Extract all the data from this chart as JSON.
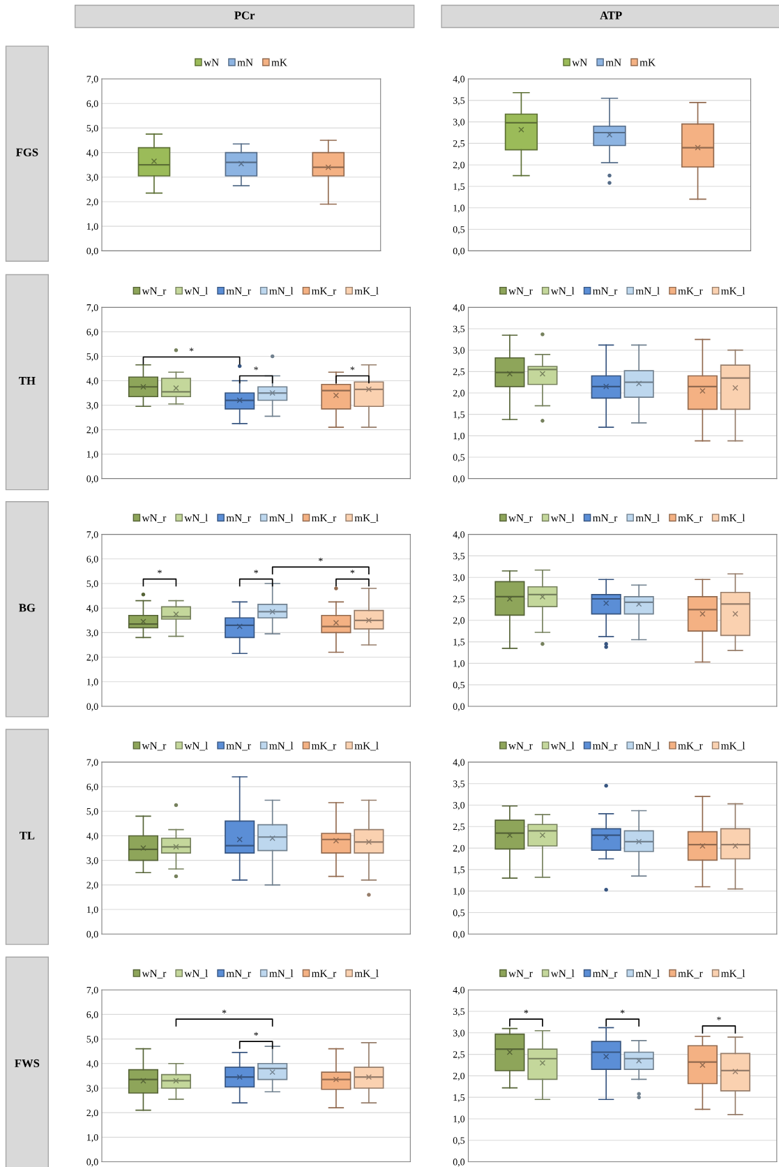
{
  "chart_data": [
    {
      "type": "box",
      "title": "PCr",
      "ylabel": "FGS",
      "categories": [
        null,
        null,
        null
      ],
      "ylim": [
        0,
        7
      ],
      "yticks": [
        {
          "value": 0,
          "label": "0,0"
        },
        {
          "value": 1,
          "label": "1,0"
        },
        {
          "value": 2,
          "label": "2,0"
        },
        {
          "value": 3,
          "label": "3,0"
        },
        {
          "value": 4,
          "label": "4,0"
        },
        {
          "value": 5,
          "label": "5,0"
        },
        {
          "value": 6,
          "label": "6,0"
        },
        {
          "value": 7,
          "label": "7,0"
        }
      ],
      "grid": "y",
      "legend": "top",
      "tick_labels": "y",
      "marker": "cross",
      "series": [
        {
          "name": "wN",
          "color": "#9bbb59",
          "boxes": [
            {
              "low": 2.35,
              "q1": 3.05,
              "median": 3.5,
              "q3": 4.2,
              "high": 4.75,
              "mean": 3.65
            },
            null,
            null
          ]
        },
        {
          "name": "mN",
          "color": "#8db4e2",
          "boxes": [
            null,
            {
              "low": 2.65,
              "q1": 3.05,
              "median": 3.6,
              "q3": 4.0,
              "high": 4.35,
              "mean": 3.55
            },
            null
          ]
        },
        {
          "name": "mK",
          "color": "#f4b183",
          "boxes": [
            null,
            null,
            {
              "low": 1.9,
              "q1": 3.05,
              "median": 3.4,
              "q3": 4.0,
              "high": 4.5,
              "mean": 3.4
            }
          ]
        }
      ]
    },
    {
      "type": "box",
      "title": "ATP",
      "categories": [
        null,
        null,
        null
      ],
      "ylim": [
        0,
        4
      ],
      "yticks": [
        {
          "value": 0,
          "label": "0,0"
        },
        {
          "value": 0.5,
          "label": "0,5"
        },
        {
          "value": 1,
          "label": "1,0"
        },
        {
          "value": 1.5,
          "label": "1,5"
        },
        {
          "value": 2,
          "label": "2,0"
        },
        {
          "value": 2.5,
          "label": "2,5"
        },
        {
          "value": 3,
          "label": "3,0"
        },
        {
          "value": 3.5,
          "label": "3,5"
        },
        {
          "value": 4,
          "label": "4,0"
        }
      ],
      "grid": "y",
      "legend": "top",
      "tick_labels": "y",
      "marker": "cross",
      "series": [
        {
          "name": "wN",
          "color": "#9bbb59",
          "boxes": [
            {
              "low": 1.75,
              "q1": 2.35,
              "median": 2.98,
              "q3": 3.18,
              "high": 3.68,
              "mean": 2.82
            },
            null,
            null
          ]
        },
        {
          "name": "mN",
          "color": "#8db4e2",
          "boxes": [
            null,
            {
              "low": 2.05,
              "q1": 2.45,
              "median": 2.75,
              "q3": 2.9,
              "high": 3.55,
              "mean": 2.7,
              "outliers": [
                1.75,
                1.58
              ]
            },
            null
          ]
        },
        {
          "name": "mK",
          "color": "#f4b183",
          "boxes": [
            null,
            null,
            {
              "low": 1.2,
              "q1": 1.95,
              "median": 2.4,
              "q3": 2.95,
              "high": 3.45,
              "mean": 2.4
            }
          ]
        }
      ]
    },
    {
      "type": "box",
      "ylabel": "TH",
      "categories": [
        null,
        null,
        null
      ],
      "ylim": [
        0,
        7
      ],
      "yticks": [
        {
          "value": 0,
          "label": "0,0"
        },
        {
          "value": 1,
          "label": "1,0"
        },
        {
          "value": 2,
          "label": "2,0"
        },
        {
          "value": 3,
          "label": "3,0"
        },
        {
          "value": 4,
          "label": "4,0"
        },
        {
          "value": 5,
          "label": "5,0"
        },
        {
          "value": 6,
          "label": "6,0"
        },
        {
          "value": 7,
          "label": "7,0"
        }
      ],
      "grid": "y",
      "legend": "top",
      "tick_labels": "y",
      "marker": "cross",
      "series": [
        {
          "name": "wN_r",
          "color": "#8ea55a",
          "boxes": [
            {
              "low": 2.95,
              "q1": 3.35,
              "median": 3.75,
              "q3": 4.15,
              "high": 4.65,
              "mean": 3.75
            },
            null,
            null
          ]
        },
        {
          "name": "wN_l",
          "color": "#c4d79b",
          "boxes": [
            {
              "low": 3.05,
              "q1": 3.35,
              "median": 3.55,
              "q3": 4.1,
              "high": 4.35,
              "mean": 3.7,
              "outliers": [
                5.25
              ]
            },
            null,
            null
          ]
        },
        {
          "name": "mN_r",
          "color": "#5b8ed6",
          "boxes": [
            null,
            {
              "low": 2.25,
              "q1": 2.85,
              "median": 3.2,
              "q3": 3.5,
              "high": 4.0,
              "mean": 3.2,
              "outliers": [
                4.6
              ]
            },
            null
          ]
        },
        {
          "name": "mN_l",
          "color": "#bdd7ee",
          "boxes": [
            null,
            {
              "low": 2.55,
              "q1": 3.2,
              "median": 3.5,
              "q3": 3.75,
              "high": 4.2,
              "mean": 3.5,
              "outliers": [
                5.0
              ]
            },
            null
          ]
        },
        {
          "name": "mK_r",
          "color": "#f4b183",
          "boxes": [
            null,
            null,
            {
              "low": 2.1,
              "q1": 2.85,
              "median": 3.6,
              "q3": 3.85,
              "high": 4.35,
              "mean": 3.4
            }
          ]
        },
        {
          "name": "mK_l",
          "color": "#fad1b0",
          "boxes": [
            null,
            null,
            {
              "low": 2.1,
              "q1": 2.95,
              "median": 3.65,
              "q3": 3.95,
              "high": 4.65,
              "mean": 3.65
            }
          ]
        }
      ],
      "annotations": [
        "*",
        "*",
        "*"
      ]
    },
    {
      "type": "box",
      "categories": [
        null,
        null,
        null
      ],
      "ylim": [
        0,
        4
      ],
      "yticks": [
        {
          "value": 0,
          "label": "0,0"
        },
        {
          "value": 0.5,
          "label": "0,5"
        },
        {
          "value": 1,
          "label": "1,0"
        },
        {
          "value": 1.5,
          "label": "1,5"
        },
        {
          "value": 2,
          "label": "2,0"
        },
        {
          "value": 2.5,
          "label": "2,5"
        },
        {
          "value": 3,
          "label": "3,0"
        },
        {
          "value": 3.5,
          "label": "3,5"
        },
        {
          "value": 4,
          "label": "4,0"
        }
      ],
      "grid": "y",
      "legend": "top",
      "tick_labels": "y",
      "marker": "cross",
      "series": [
        {
          "name": "wN_r",
          "color": "#8ea55a",
          "boxes": [
            {
              "low": 1.38,
              "q1": 2.15,
              "median": 2.48,
              "q3": 2.82,
              "high": 3.35,
              "mean": 2.45
            },
            null,
            null
          ]
        },
        {
          "name": "wN_l",
          "color": "#c4d79b",
          "boxes": [
            {
              "low": 1.7,
              "q1": 2.2,
              "median": 2.55,
              "q3": 2.62,
              "high": 2.9,
              "mean": 2.45,
              "outliers": [
                3.37,
                1.35
              ]
            },
            null,
            null
          ]
        },
        {
          "name": "mN_r",
          "color": "#5b8ed6",
          "boxes": [
            null,
            {
              "low": 1.2,
              "q1": 1.88,
              "median": 2.15,
              "q3": 2.4,
              "high": 3.12,
              "mean": 2.15
            },
            null
          ]
        },
        {
          "name": "mN_l",
          "color": "#bdd7ee",
          "boxes": [
            null,
            {
              "low": 1.3,
              "q1": 1.9,
              "median": 2.25,
              "q3": 2.52,
              "high": 3.12,
              "mean": 2.22
            },
            null
          ]
        },
        {
          "name": "mK_r",
          "color": "#f4b183",
          "boxes": [
            null,
            null,
            {
              "low": 0.88,
              "q1": 1.62,
              "median": 2.15,
              "q3": 2.4,
              "high": 3.25,
              "mean": 2.05
            }
          ]
        },
        {
          "name": "mK_l",
          "color": "#fad1b0",
          "boxes": [
            null,
            null,
            {
              "low": 0.88,
              "q1": 1.62,
              "median": 2.35,
              "q3": 2.65,
              "high": 3.0,
              "mean": 2.12
            }
          ]
        }
      ]
    },
    {
      "type": "box",
      "ylabel": "BG",
      "categories": [
        null,
        null,
        null
      ],
      "ylim": [
        0,
        7
      ],
      "yticks": [
        {
          "value": 0,
          "label": "0,0"
        },
        {
          "value": 1,
          "label": "1,0"
        },
        {
          "value": 2,
          "label": "2,0"
        },
        {
          "value": 3,
          "label": "3,0"
        },
        {
          "value": 4,
          "label": "4,0"
        },
        {
          "value": 5,
          "label": "5,0"
        },
        {
          "value": 6,
          "label": "6,0"
        },
        {
          "value": 7,
          "label": "7,0"
        }
      ],
      "grid": "y",
      "legend": "top",
      "tick_labels": "y",
      "marker": "cross",
      "series": [
        {
          "name": "wN_r",
          "color": "#8ea55a",
          "boxes": [
            {
              "low": 2.8,
              "q1": 3.2,
              "median": 3.35,
              "q3": 3.7,
              "high": 4.3,
              "mean": 3.45,
              "outliers": [
                4.55
              ]
            },
            null,
            null
          ]
        },
        {
          "name": "wN_l",
          "color": "#c4d79b",
          "boxes": [
            {
              "low": 2.85,
              "q1": 3.55,
              "median": 3.65,
              "q3": 4.05,
              "high": 4.3,
              "mean": 3.75
            },
            null,
            null
          ]
        },
        {
          "name": "mN_r",
          "color": "#5b8ed6",
          "boxes": [
            null,
            {
              "low": 2.15,
              "q1": 2.8,
              "median": 3.3,
              "q3": 3.6,
              "high": 4.25,
              "mean": 3.25
            },
            null
          ]
        },
        {
          "name": "mN_l",
          "color": "#bdd7ee",
          "boxes": [
            null,
            {
              "low": 2.95,
              "q1": 3.6,
              "median": 3.85,
              "q3": 4.15,
              "high": 5.0,
              "mean": 3.85
            },
            null
          ]
        },
        {
          "name": "mK_r",
          "color": "#f4b183",
          "boxes": [
            null,
            null,
            {
              "low": 2.2,
              "q1": 3.0,
              "median": 3.25,
              "q3": 3.7,
              "high": 4.25,
              "mean": 3.4,
              "outliers": [
                4.8
              ]
            }
          ]
        },
        {
          "name": "mK_l",
          "color": "#fad1b0",
          "boxes": [
            null,
            null,
            {
              "low": 2.5,
              "q1": 3.15,
              "median": 3.5,
              "q3": 3.9,
              "high": 4.8,
              "mean": 3.5
            }
          ]
        }
      ],
      "annotations": [
        "*",
        "*",
        "*",
        "*"
      ]
    },
    {
      "type": "box",
      "categories": [
        null,
        null,
        null
      ],
      "ylim": [
        0,
        4
      ],
      "yticks": [
        {
          "value": 0,
          "label": "0,0"
        },
        {
          "value": 0.5,
          "label": "0,5"
        },
        {
          "value": 1,
          "label": "1,0"
        },
        {
          "value": 1.5,
          "label": "1,5"
        },
        {
          "value": 2,
          "label": "2,0"
        },
        {
          "value": 2.5,
          "label": "2,5"
        },
        {
          "value": 3,
          "label": "3,0"
        },
        {
          "value": 3.5,
          "label": "3,5"
        },
        {
          "value": 4,
          "label": "4,0"
        }
      ],
      "grid": "y",
      "legend": "top",
      "tick_labels": "y",
      "marker": "cross",
      "series": [
        {
          "name": "wN_r",
          "color": "#8ea55a",
          "boxes": [
            {
              "low": 1.35,
              "q1": 2.12,
              "median": 2.55,
              "q3": 2.9,
              "high": 3.15,
              "mean": 2.5
            },
            null,
            null
          ]
        },
        {
          "name": "wN_l",
          "color": "#c4d79b",
          "boxes": [
            {
              "low": 1.72,
              "q1": 2.32,
              "median": 2.6,
              "q3": 2.78,
              "high": 3.17,
              "mean": 2.55,
              "outliers": [
                1.45
              ]
            },
            null,
            null
          ]
        },
        {
          "name": "mN_r",
          "color": "#5b8ed6",
          "boxes": [
            null,
            {
              "low": 1.62,
              "q1": 2.15,
              "median": 2.5,
              "q3": 2.6,
              "high": 2.95,
              "mean": 2.4,
              "outliers": [
                1.45,
                1.38
              ]
            },
            null
          ]
        },
        {
          "name": "mN_l",
          "color": "#bdd7ee",
          "boxes": [
            null,
            {
              "low": 1.55,
              "q1": 2.15,
              "median": 2.42,
              "q3": 2.55,
              "high": 2.82,
              "mean": 2.38
            },
            null
          ]
        },
        {
          "name": "mK_r",
          "color": "#f4b183",
          "boxes": [
            null,
            null,
            {
              "low": 1.03,
              "q1": 1.75,
              "median": 2.25,
              "q3": 2.55,
              "high": 2.95,
              "mean": 2.15
            }
          ]
        },
        {
          "name": "mK_l",
          "color": "#fad1b0",
          "boxes": [
            null,
            null,
            {
              "low": 1.3,
              "q1": 1.65,
              "median": 2.38,
              "q3": 2.65,
              "high": 3.08,
              "mean": 2.15
            }
          ]
        }
      ]
    },
    {
      "type": "box",
      "ylabel": "TL",
      "categories": [
        null,
        null,
        null
      ],
      "ylim": [
        0,
        7
      ],
      "yticks": [
        {
          "value": 0,
          "label": "0,0"
        },
        {
          "value": 1,
          "label": "1,0"
        },
        {
          "value": 2,
          "label": "2,0"
        },
        {
          "value": 3,
          "label": "3,0"
        },
        {
          "value": 4,
          "label": "4,0"
        },
        {
          "value": 5,
          "label": "5,0"
        },
        {
          "value": 6,
          "label": "6,0"
        },
        {
          "value": 7,
          "label": "7,0"
        }
      ],
      "grid": "y",
      "legend": "top",
      "tick_labels": "y",
      "marker": "cross",
      "series": [
        {
          "name": "wN_r",
          "color": "#8ea55a",
          "boxes": [
            {
              "low": 2.5,
              "q1": 3.0,
              "median": 3.45,
              "q3": 4.0,
              "high": 4.8,
              "mean": 3.5
            },
            null,
            null
          ]
        },
        {
          "name": "wN_l",
          "color": "#c4d79b",
          "boxes": [
            {
              "low": 2.65,
              "q1": 3.3,
              "median": 3.55,
              "q3": 3.9,
              "high": 4.25,
              "mean": 3.55,
              "outliers": [
                5.25,
                2.35
              ]
            },
            null,
            null
          ]
        },
        {
          "name": "mN_r",
          "color": "#5b8ed6",
          "boxes": [
            null,
            {
              "low": 2.2,
              "q1": 3.3,
              "median": 3.6,
              "q3": 4.6,
              "high": 6.4,
              "mean": 3.85
            },
            null
          ]
        },
        {
          "name": "mN_l",
          "color": "#bdd7ee",
          "boxes": [
            null,
            {
              "low": 2.0,
              "q1": 3.4,
              "median": 3.95,
              "q3": 4.45,
              "high": 5.45,
              "mean": 3.9
            },
            null
          ]
        },
        {
          "name": "mK_r",
          "color": "#f4b183",
          "boxes": [
            null,
            null,
            {
              "low": 2.35,
              "q1": 3.3,
              "median": 3.85,
              "q3": 4.1,
              "high": 5.35,
              "mean": 3.8
            }
          ]
        },
        {
          "name": "mK_l",
          "color": "#fad1b0",
          "boxes": [
            null,
            null,
            {
              "low": 2.2,
              "q1": 3.3,
              "median": 3.75,
              "q3": 4.25,
              "high": 5.45,
              "mean": 3.75,
              "outliers": [
                1.6
              ]
            }
          ]
        }
      ]
    },
    {
      "type": "box",
      "categories": [
        null,
        null,
        null
      ],
      "ylim": [
        0,
        4
      ],
      "yticks": [
        {
          "value": 0,
          "label": "0,0"
        },
        {
          "value": 0.5,
          "label": "0,5"
        },
        {
          "value": 1,
          "label": "1,0"
        },
        {
          "value": 1.5,
          "label": "1,5"
        },
        {
          "value": 2,
          "label": "2,0"
        },
        {
          "value": 2.5,
          "label": "2,5"
        },
        {
          "value": 3,
          "label": "3,0"
        },
        {
          "value": 3.5,
          "label": "3,5"
        },
        {
          "value": 4,
          "label": "4,0"
        }
      ],
      "grid": "y",
      "legend": "top",
      "tick_labels": "y",
      "marker": "cross",
      "series": [
        {
          "name": "wN_r",
          "color": "#8ea55a",
          "boxes": [
            {
              "low": 1.3,
              "q1": 1.98,
              "median": 2.35,
              "q3": 2.65,
              "high": 2.98,
              "mean": 2.3
            },
            null,
            null
          ]
        },
        {
          "name": "wN_l",
          "color": "#c4d79b",
          "boxes": [
            {
              "low": 1.32,
              "q1": 2.05,
              "median": 2.4,
              "q3": 2.55,
              "high": 2.78,
              "mean": 2.3
            },
            null,
            null
          ]
        },
        {
          "name": "mN_r",
          "color": "#5b8ed6",
          "boxes": [
            null,
            {
              "low": 1.75,
              "q1": 1.95,
              "median": 2.3,
              "q3": 2.45,
              "high": 2.8,
              "mean": 2.25,
              "outliers": [
                3.45,
                1.03
              ]
            },
            null
          ]
        },
        {
          "name": "mN_l",
          "color": "#bdd7ee",
          "boxes": [
            null,
            {
              "low": 1.35,
              "q1": 1.92,
              "median": 2.15,
              "q3": 2.4,
              "high": 2.87,
              "mean": 2.15
            },
            null
          ]
        },
        {
          "name": "mK_r",
          "color": "#f4b183",
          "boxes": [
            null,
            null,
            {
              "low": 1.1,
              "q1": 1.72,
              "median": 2.08,
              "q3": 2.38,
              "high": 3.2,
              "mean": 2.05
            }
          ]
        },
        {
          "name": "mK_l",
          "color": "#fad1b0",
          "boxes": [
            null,
            null,
            {
              "low": 1.05,
              "q1": 1.75,
              "median": 2.08,
              "q3": 2.45,
              "high": 3.03,
              "mean": 2.05
            }
          ]
        }
      ]
    },
    {
      "type": "box",
      "ylabel": "FWS",
      "categories": [
        null,
        null,
        null
      ],
      "ylim": [
        0,
        7
      ],
      "yticks": [
        {
          "value": 0,
          "label": "0,0"
        },
        {
          "value": 1,
          "label": "1,0"
        },
        {
          "value": 2,
          "label": "2,0"
        },
        {
          "value": 3,
          "label": "3,0"
        },
        {
          "value": 4,
          "label": "4,0"
        },
        {
          "value": 5,
          "label": "5,0"
        },
        {
          "value": 6,
          "label": "6,0"
        },
        {
          "value": 7,
          "label": "7,0"
        }
      ],
      "grid": "y",
      "legend": "top",
      "tick_labels": "y",
      "marker": "cross",
      "series": [
        {
          "name": "wN_r",
          "color": "#8ea55a",
          "boxes": [
            {
              "low": 2.1,
              "q1": 2.8,
              "median": 3.35,
              "q3": 3.75,
              "high": 4.6,
              "mean": 3.3
            },
            null,
            null
          ]
        },
        {
          "name": "wN_l",
          "color": "#c4d79b",
          "boxes": [
            {
              "low": 2.55,
              "q1": 3.0,
              "median": 3.3,
              "q3": 3.55,
              "high": 4.0,
              "mean": 3.3
            },
            null,
            null
          ]
        },
        {
          "name": "mN_r",
          "color": "#5b8ed6",
          "boxes": [
            null,
            {
              "low": 2.4,
              "q1": 3.05,
              "median": 3.45,
              "q3": 3.85,
              "high": 4.45,
              "mean": 3.45
            },
            null
          ]
        },
        {
          "name": "mN_l",
          "color": "#bdd7ee",
          "boxes": [
            null,
            {
              "low": 2.85,
              "q1": 3.35,
              "median": 3.8,
              "q3": 4.0,
              "high": 4.7,
              "mean": 3.65
            },
            null
          ]
        },
        {
          "name": "mK_r",
          "color": "#f4b183",
          "boxes": [
            null,
            null,
            {
              "low": 2.2,
              "q1": 2.95,
              "median": 3.35,
              "q3": 3.65,
              "high": 4.6,
              "mean": 3.35
            }
          ]
        },
        {
          "name": "mK_l",
          "color": "#fad1b0",
          "boxes": [
            null,
            null,
            {
              "low": 2.4,
              "q1": 3.0,
              "median": 3.45,
              "q3": 3.85,
              "high": 4.85,
              "mean": 3.45
            }
          ]
        }
      ],
      "annotations": [
        "*",
        "*"
      ]
    },
    {
      "type": "box",
      "categories": [
        null,
        null,
        null
      ],
      "ylim": [
        0,
        4
      ],
      "yticks": [
        {
          "value": 0,
          "label": "0,0"
        },
        {
          "value": 0.5,
          "label": "0,5"
        },
        {
          "value": 1,
          "label": "1,0"
        },
        {
          "value": 1.5,
          "label": "1,5"
        },
        {
          "value": 2,
          "label": "2,0"
        },
        {
          "value": 2.5,
          "label": "2,5"
        },
        {
          "value": 3,
          "label": "3,0"
        },
        {
          "value": 3.5,
          "label": "3,5"
        },
        {
          "value": 4,
          "label": "4,0"
        }
      ],
      "grid": "y",
      "legend": "top",
      "tick_labels": "y",
      "marker": "cross",
      "series": [
        {
          "name": "wN_r",
          "color": "#8ea55a",
          "boxes": [
            {
              "low": 1.72,
              "q1": 2.12,
              "median": 2.62,
              "q3": 2.97,
              "high": 3.1,
              "mean": 2.55
            },
            null,
            null
          ]
        },
        {
          "name": "wN_l",
          "color": "#c4d79b",
          "boxes": [
            {
              "low": 1.45,
              "q1": 1.92,
              "median": 2.4,
              "q3": 2.62,
              "high": 3.05,
              "mean": 2.3
            },
            null,
            null
          ]
        },
        {
          "name": "mN_r",
          "color": "#5b8ed6",
          "boxes": [
            null,
            {
              "low": 1.45,
              "q1": 2.15,
              "median": 2.55,
              "q3": 2.8,
              "high": 3.12,
              "mean": 2.45
            },
            null
          ]
        },
        {
          "name": "mN_l",
          "color": "#bdd7ee",
          "boxes": [
            null,
            {
              "low": 1.92,
              "q1": 2.15,
              "median": 2.4,
              "q3": 2.55,
              "high": 2.82,
              "mean": 2.35,
              "outliers": [
                1.58,
                1.5
              ]
            },
            null
          ]
        },
        {
          "name": "mK_r",
          "color": "#f4b183",
          "boxes": [
            null,
            null,
            {
              "low": 1.22,
              "q1": 1.82,
              "median": 2.32,
              "q3": 2.7,
              "high": 2.92,
              "mean": 2.25
            }
          ]
        },
        {
          "name": "mK_l",
          "color": "#fad1b0",
          "boxes": [
            null,
            null,
            {
              "low": 1.1,
              "q1": 1.65,
              "median": 2.12,
              "q3": 2.52,
              "high": 2.9,
              "mean": 2.1
            }
          ]
        }
      ],
      "annotations": [
        "*",
        "*",
        "*"
      ]
    }
  ]
}
